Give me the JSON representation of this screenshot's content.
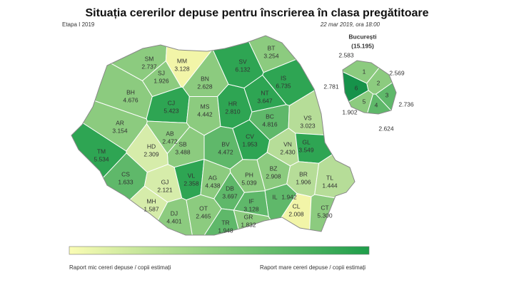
{
  "title": "Situația cererilor depuse pentru înscrierea în clasa pregătitoare",
  "subtitle": "Etapa I 2019",
  "date": "22 mar 2019, ora 18:00",
  "counties": [
    {
      "code": "SM",
      "value": "2.737",
      "color": "#8ccb7f"
    },
    {
      "code": "MM",
      "value": "3.128",
      "color": "#f2f5a8"
    },
    {
      "code": "SV",
      "value": "6.132",
      "color": "#2ea553"
    },
    {
      "code": "BT",
      "value": "3.254",
      "color": "#8ccb7f"
    },
    {
      "code": "SJ",
      "value": "1.926",
      "color": "#8ccb7f"
    },
    {
      "code": "BN",
      "value": "2.628",
      "color": "#8ccb7f"
    },
    {
      "code": "BH",
      "value": "4.676",
      "color": "#8ccb7f"
    },
    {
      "code": "CJ",
      "value": "5.423",
      "color": "#2ea553"
    },
    {
      "code": "MS",
      "value": "4.442",
      "color": "#8ccb7f"
    },
    {
      "code": "HR",
      "value": "2.810",
      "color": "#2ea553"
    },
    {
      "code": "NT",
      "value": "3.647",
      "color": "#2ea553"
    },
    {
      "code": "IS",
      "value": "6.735",
      "color": "#2ea553"
    },
    {
      "code": "AR",
      "value": "3.154",
      "color": "#8ccb7f"
    },
    {
      "code": "AB",
      "value": "2.472",
      "color": "#8ccb7f"
    },
    {
      "code": "BC",
      "value": "4.816",
      "color": "#5fb86a"
    },
    {
      "code": "VS",
      "value": "3.023",
      "color": "#b6dd98"
    },
    {
      "code": "CV",
      "value": "1.953",
      "color": "#2ea553"
    },
    {
      "code": "SB",
      "value": "3.488",
      "color": "#8ccb7f"
    },
    {
      "code": "BV",
      "value": "4.472",
      "color": "#5fb86a"
    },
    {
      "code": "HD",
      "value": "2.309",
      "color": "#d6ecaa"
    },
    {
      "code": "TM",
      "value": "5.534",
      "color": "#2ea553"
    },
    {
      "code": "VN",
      "value": "2.430",
      "color": "#b6dd98"
    },
    {
      "code": "GL",
      "value": "3.549",
      "color": "#2ea553"
    },
    {
      "code": "CS",
      "value": "1.633",
      "color": "#5fb86a"
    },
    {
      "code": "GJ",
      "value": "2.121",
      "color": "#d6ecaa"
    },
    {
      "code": "VL",
      "value": "2.358",
      "color": "#2ea553"
    },
    {
      "code": "AG",
      "value": "4.438",
      "color": "#8ccb7f"
    },
    {
      "code": "PH",
      "value": "5.039",
      "color": "#8ccb7f"
    },
    {
      "code": "BZ",
      "value": "2.908",
      "color": "#8ccb7f"
    },
    {
      "code": "BR",
      "value": "1.906",
      "color": "#b6dd98"
    },
    {
      "code": "TL",
      "value": "1.444",
      "color": "#b6dd98"
    },
    {
      "code": "DB",
      "value": "3.697",
      "color": "#5fb86a"
    },
    {
      "code": "IL",
      "value": "1.942",
      "color": "#5fb86a"
    },
    {
      "code": "MH",
      "value": "1.587",
      "color": "#d6ecaa"
    },
    {
      "code": "IF",
      "value": "3.128",
      "color": "#5fb86a"
    },
    {
      "code": "CL",
      "value": "2.008",
      "color": "#f2f5a8"
    },
    {
      "code": "CT",
      "value": "5.300",
      "color": "#8ccb7f"
    },
    {
      "code": "DJ",
      "value": "4.401",
      "color": "#8ccb7f"
    },
    {
      "code": "OT",
      "value": "2.465",
      "color": "#8ccb7f"
    },
    {
      "code": "GR",
      "value": "1.832",
      "color": "#8ccb7f"
    },
    {
      "code": "TR",
      "value": "1.948",
      "color": "#5fb86a"
    }
  ],
  "bucharest": {
    "title": "București",
    "total": "(15.195)",
    "sectors": [
      {
        "label": "1",
        "value": "2.583",
        "color": "#8ccb7f"
      },
      {
        "label": "2",
        "value": "2.569",
        "color": "#8ccb7f"
      },
      {
        "label": "3",
        "value": "2.736",
        "color": "#5fb86a"
      },
      {
        "label": "4",
        "value": "2.624",
        "color": "#5fb86a"
      },
      {
        "label": "5",
        "value": "1.902",
        "color": "#8ccb7f"
      },
      {
        "label": "6",
        "value": "2.781",
        "color": "#16924a"
      }
    ]
  },
  "legend": {
    "colors": [
      "#fafcb4",
      "#1e9e4a"
    ],
    "low_label": "Raport mic cereri depuse / copii estimați",
    "high_label": "Raport mare cereri depuse / copii estimați"
  }
}
